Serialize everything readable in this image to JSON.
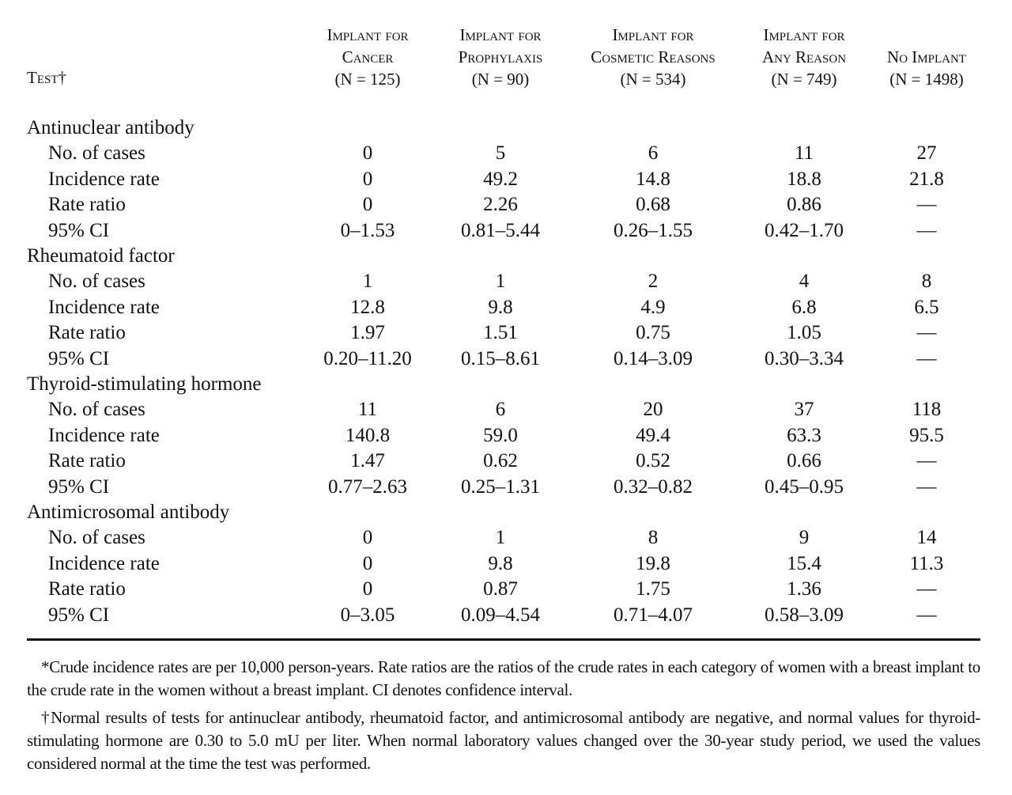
{
  "header": {
    "test_label": "Test†",
    "columns": [
      {
        "line1": "Implant for",
        "line2": "Cancer",
        "n": "(N = 125)"
      },
      {
        "line1": "Implant for",
        "line2": "Prophylaxis",
        "n": "(N = 90)"
      },
      {
        "line1": "Implant for",
        "line2": "Cosmetic Reasons",
        "n": "(N = 534)"
      },
      {
        "line1": "Implant for",
        "line2": "Any Reason",
        "n": "(N = 749)"
      },
      {
        "line1": "",
        "line2": "No Implant",
        "n": "(N = 1498)"
      }
    ]
  },
  "groups": [
    {
      "title": "Antinuclear antibody",
      "rows": [
        {
          "label": "No. of cases",
          "values": [
            "0",
            "5",
            "6",
            "11",
            "27"
          ]
        },
        {
          "label": "Incidence rate",
          "values": [
            "0",
            "49.2",
            "14.8",
            "18.8",
            "21.8"
          ]
        },
        {
          "label": "Rate ratio",
          "values": [
            "0",
            "2.26",
            "0.68",
            "0.86",
            "—"
          ]
        },
        {
          "label": "95% CI",
          "values": [
            "0–1.53",
            "0.81–5.44",
            "0.26–1.55",
            "0.42–1.70",
            "—"
          ]
        }
      ]
    },
    {
      "title": "Rheumatoid factor",
      "rows": [
        {
          "label": "No. of cases",
          "values": [
            "1",
            "1",
            "2",
            "4",
            "8"
          ]
        },
        {
          "label": "Incidence rate",
          "values": [
            "12.8",
            "9.8",
            "4.9",
            "6.8",
            "6.5"
          ]
        },
        {
          "label": "Rate ratio",
          "values": [
            "1.97",
            "1.51",
            "0.75",
            "1.05",
            "—"
          ]
        },
        {
          "label": "95% CI",
          "values": [
            "0.20–11.20",
            "0.15–8.61",
            "0.14–3.09",
            "0.30–3.34",
            "—"
          ]
        }
      ]
    },
    {
      "title": "Thyroid-stimulating hormone",
      "rows": [
        {
          "label": "No. of cases",
          "values": [
            "11",
            "6",
            "20",
            "37",
            "118"
          ]
        },
        {
          "label": "Incidence rate",
          "values": [
            "140.8",
            "59.0",
            "49.4",
            "63.3",
            "95.5"
          ]
        },
        {
          "label": "Rate ratio",
          "values": [
            "1.47",
            "0.62",
            "0.52",
            "0.66",
            "—"
          ]
        },
        {
          "label": "95% CI",
          "values": [
            "0.77–2.63",
            "0.25–1.31",
            "0.32–0.82",
            "0.45–0.95",
            "—"
          ]
        }
      ]
    },
    {
      "title": "Antimicrosomal antibody",
      "rows": [
        {
          "label": "No. of cases",
          "values": [
            "0",
            "1",
            "8",
            "9",
            "14"
          ]
        },
        {
          "label": "Incidence rate",
          "values": [
            "0",
            "9.8",
            "19.8",
            "15.4",
            "11.3"
          ]
        },
        {
          "label": "Rate ratio",
          "values": [
            "0",
            "0.87",
            "1.75",
            "1.36",
            "—"
          ]
        },
        {
          "label": "95% CI",
          "values": [
            "0–3.05",
            "0.09–4.54",
            "0.71–4.07",
            "0.58–3.09",
            "—"
          ]
        }
      ]
    }
  ],
  "footnotes": [
    "*Crude incidence rates are per 10,000 person-years. Rate ratios are the ratios of the crude rates in each category of women with a breast implant to the crude rate in the women without a breast implant. CI denotes confidence interval.",
    "†Normal results of tests for antinuclear antibody, rheumatoid factor, and antimicrosomal antibody are negative, and normal values for thyroid-stimulating hormone are 0.30 to 5.0 mU per liter. When normal laboratory values changed over the 30-year study period, we used the values considered normal at the time the test was performed."
  ]
}
